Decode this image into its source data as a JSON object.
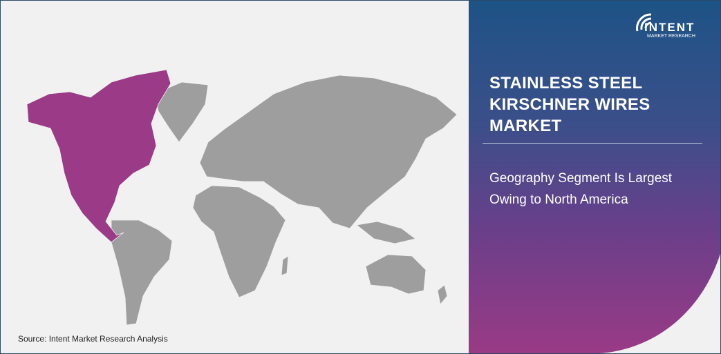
{
  "logo": {
    "name": "INTENT",
    "tagline": "MARKET RESEARCH",
    "trademark": "TM"
  },
  "panel": {
    "title": "STAINLESS STEEL KIRSCHNER WIRES MARKET",
    "subtitle": "Geography Segment Is Largest Owing to North America"
  },
  "map": {
    "highlighted_region": "North America",
    "highlight_color": "#9b3a87",
    "other_color": "#9e9e9e"
  },
  "source": "Source: Intent Market Research Analysis",
  "colors": {
    "panel_top": "#1d5386",
    "panel_bottom": "#9a3a85",
    "background": "#f1f1f1"
  }
}
